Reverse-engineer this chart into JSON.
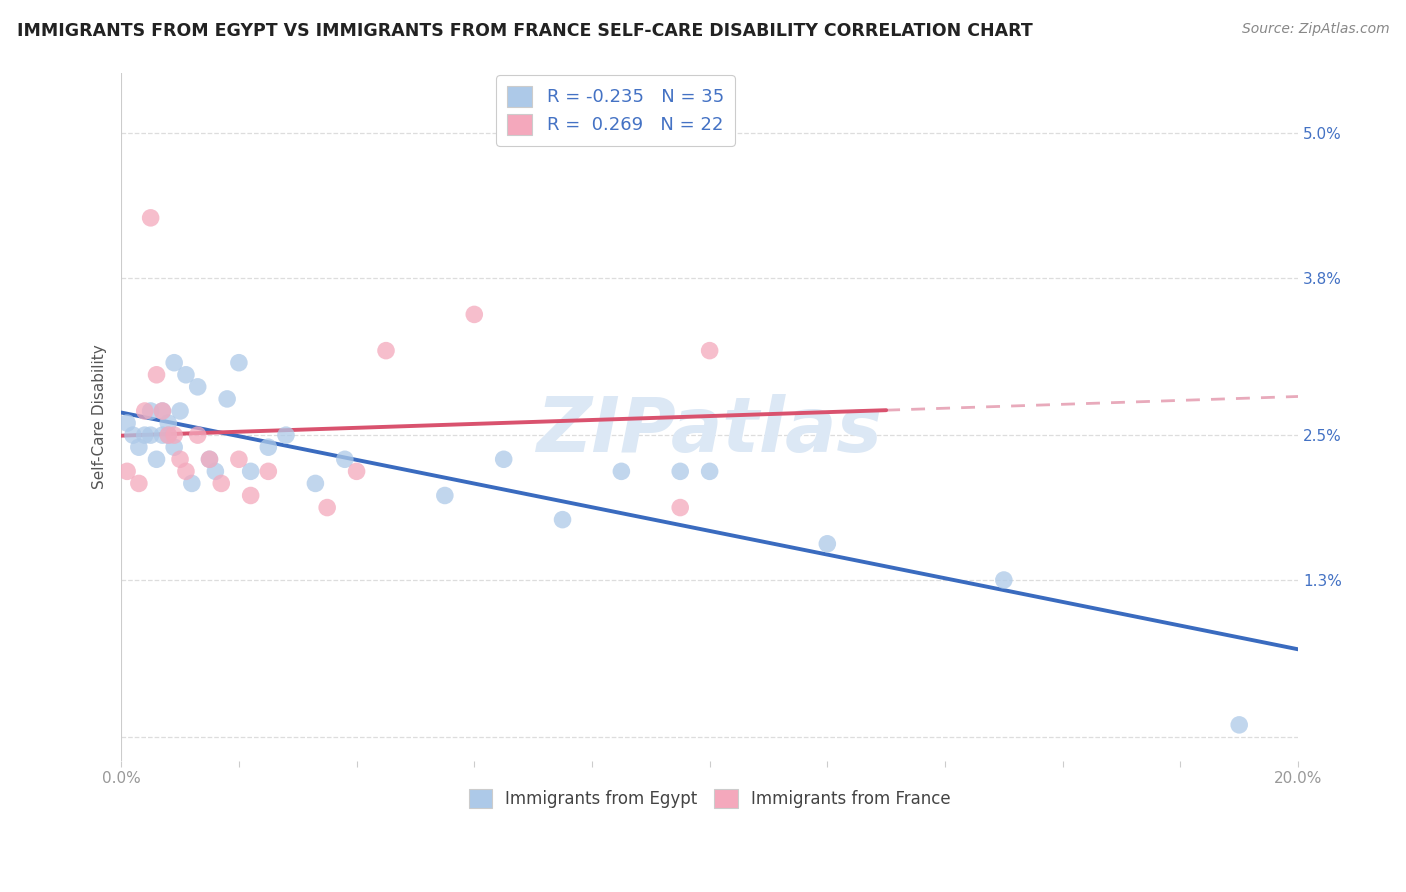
{
  "title": "IMMIGRANTS FROM EGYPT VS IMMIGRANTS FROM FRANCE SELF-CARE DISABILITY CORRELATION CHART",
  "source": "Source: ZipAtlas.com",
  "ylabel": "Self-Care Disability",
  "xlim": [
    0.0,
    0.2
  ],
  "ylim": [
    -0.002,
    0.055
  ],
  "egypt_color": "#adc9e8",
  "france_color": "#f4a8bc",
  "egypt_line_color": "#3a6bbf",
  "france_line_color": "#d9526e",
  "egypt_R": -0.235,
  "egypt_N": 35,
  "france_R": 0.269,
  "france_N": 22,
  "legend_color": "#4472c4",
  "watermark": "ZIPatlas",
  "yticks": [
    0.0,
    0.013,
    0.025,
    0.038,
    0.05
  ],
  "ytick_labels": [
    "",
    "1.3%",
    "2.5%",
    "3.8%",
    "5.0%"
  ],
  "xtick_count": 11,
  "egypt_x": [
    0.001,
    0.002,
    0.003,
    0.004,
    0.005,
    0.005,
    0.006,
    0.007,
    0.007,
    0.008,
    0.008,
    0.009,
    0.009,
    0.01,
    0.011,
    0.012,
    0.013,
    0.015,
    0.016,
    0.018,
    0.02,
    0.022,
    0.025,
    0.028,
    0.033,
    0.038,
    0.055,
    0.065,
    0.075,
    0.085,
    0.095,
    0.1,
    0.12,
    0.15,
    0.19
  ],
  "egypt_y": [
    0.026,
    0.025,
    0.024,
    0.025,
    0.027,
    0.025,
    0.023,
    0.025,
    0.027,
    0.026,
    0.025,
    0.024,
    0.031,
    0.027,
    0.03,
    0.021,
    0.029,
    0.023,
    0.022,
    0.028,
    0.031,
    0.022,
    0.024,
    0.025,
    0.021,
    0.023,
    0.02,
    0.023,
    0.018,
    0.022,
    0.022,
    0.022,
    0.016,
    0.013,
    0.001
  ],
  "france_x": [
    0.001,
    0.003,
    0.004,
    0.005,
    0.006,
    0.007,
    0.008,
    0.009,
    0.01,
    0.011,
    0.013,
    0.015,
    0.017,
    0.02,
    0.022,
    0.025,
    0.035,
    0.04,
    0.045,
    0.06,
    0.095,
    0.1
  ],
  "france_y": [
    0.022,
    0.021,
    0.027,
    0.043,
    0.03,
    0.027,
    0.025,
    0.025,
    0.023,
    0.022,
    0.025,
    0.023,
    0.021,
    0.023,
    0.02,
    0.022,
    0.019,
    0.022,
    0.032,
    0.035,
    0.019,
    0.032
  ]
}
